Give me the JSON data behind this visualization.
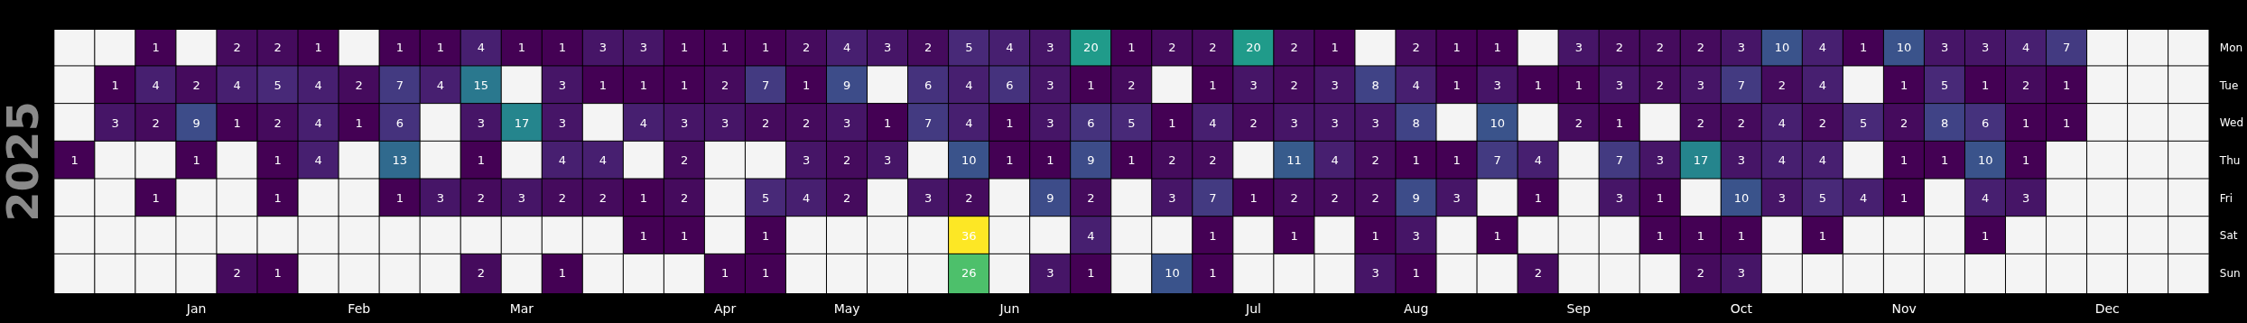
{
  "chart_data": {
    "type": "heatmap",
    "ylabel": "2025",
    "categories": [
      null,
      null,
      null,
      "Jan",
      null,
      null,
      null,
      "Feb",
      null,
      null,
      null,
      "Mar",
      null,
      null,
      null,
      null,
      "Apr",
      null,
      null,
      "May",
      null,
      null,
      null,
      "Jun",
      null,
      null,
      null,
      null,
      null,
      "Jul",
      null,
      null,
      null,
      "Aug",
      null,
      null,
      null,
      "Sep",
      null,
      null,
      null,
      "Oct",
      null,
      null,
      null,
      "Nov",
      null,
      null,
      null,
      null,
      "Dec",
      null,
      null
    ],
    "y_categories": [
      "Mon",
      "Tue",
      "Wed",
      "Thu",
      "Fri",
      "Sat",
      "Sun"
    ],
    "data_labels": true,
    "cells": [
      [
        null,
        null,
        1,
        null,
        2,
        2,
        1,
        null,
        1,
        1,
        4,
        1,
        1,
        3,
        3,
        1,
        1,
        1,
        2,
        4,
        3,
        2,
        5,
        4,
        3,
        20,
        1,
        2,
        2,
        20,
        2,
        1,
        null,
        2,
        1,
        1,
        null,
        3,
        2,
        2,
        2,
        3,
        10,
        4,
        1,
        10,
        3,
        3,
        4,
        7,
        null,
        null,
        null
      ],
      [
        null,
        1,
        4,
        2,
        4,
        5,
        4,
        2,
        7,
        4,
        15,
        null,
        3,
        1,
        1,
        1,
        2,
        7,
        1,
        9,
        null,
        6,
        4,
        6,
        3,
        1,
        2,
        null,
        1,
        3,
        2,
        3,
        8,
        4,
        1,
        3,
        1,
        1,
        3,
        2,
        3,
        7,
        2,
        4,
        null,
        1,
        5,
        1,
        2,
        1,
        null,
        null,
        null
      ],
      [
        null,
        3,
        2,
        9,
        1,
        2,
        4,
        1,
        6,
        null,
        3,
        17,
        3,
        null,
        4,
        3,
        3,
        2,
        2,
        3,
        1,
        7,
        4,
        1,
        3,
        6,
        5,
        1,
        4,
        2,
        3,
        3,
        3,
        8,
        null,
        10,
        null,
        2,
        1,
        null,
        2,
        2,
        4,
        2,
        5,
        2,
        8,
        6,
        1,
        1,
        null,
        null,
        null
      ],
      [
        1,
        null,
        null,
        1,
        null,
        1,
        4,
        null,
        13,
        null,
        1,
        null,
        4,
        4,
        null,
        2,
        null,
        null,
        3,
        2,
        3,
        null,
        10,
        1,
        1,
        9,
        1,
        2,
        2,
        null,
        11,
        4,
        2,
        1,
        1,
        7,
        4,
        null,
        7,
        3,
        17,
        3,
        4,
        4,
        null,
        1,
        1,
        10,
        1,
        null,
        null,
        null,
        null
      ],
      [
        null,
        null,
        1,
        null,
        null,
        1,
        null,
        null,
        1,
        3,
        2,
        3,
        2,
        2,
        1,
        2,
        null,
        5,
        4,
        2,
        null,
        3,
        2,
        null,
        9,
        2,
        null,
        3,
        7,
        1,
        2,
        2,
        2,
        9,
        3,
        null,
        1,
        null,
        3,
        1,
        null,
        10,
        3,
        5,
        4,
        1,
        null,
        4,
        3,
        null,
        null,
        null,
        null
      ],
      [
        null,
        null,
        null,
        null,
        null,
        null,
        null,
        null,
        null,
        null,
        null,
        null,
        null,
        null,
        1,
        1,
        null,
        1,
        null,
        null,
        null,
        null,
        36,
        null,
        null,
        4,
        null,
        null,
        1,
        null,
        1,
        null,
        1,
        3,
        null,
        1,
        null,
        null,
        null,
        1,
        1,
        1,
        null,
        1,
        null,
        null,
        null,
        1,
        null,
        null,
        null,
        null,
        null
      ],
      [
        null,
        null,
        null,
        null,
        2,
        1,
        null,
        null,
        null,
        null,
        2,
        null,
        1,
        null,
        null,
        null,
        1,
        1,
        null,
        null,
        null,
        null,
        26,
        null,
        3,
        1,
        null,
        10,
        1,
        null,
        null,
        null,
        3,
        1,
        null,
        null,
        2,
        null,
        null,
        null,
        2,
        3,
        null,
        null,
        null,
        null,
        null,
        null,
        null,
        null,
        null,
        null,
        null
      ]
    ]
  }
}
